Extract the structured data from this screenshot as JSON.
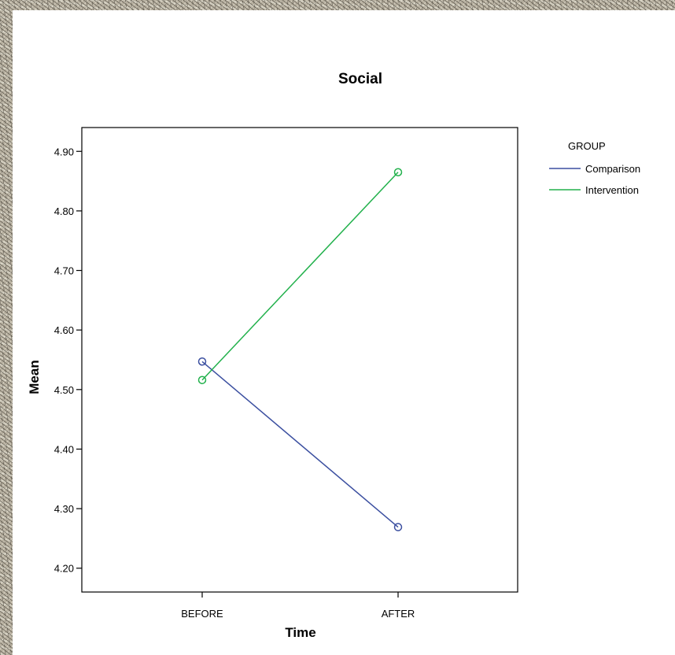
{
  "chart_data": {
    "type": "line",
    "title": "Social",
    "xlabel": "Time",
    "ylabel": "Mean",
    "categories": [
      "BEFORE",
      "AFTER"
    ],
    "ylim": [
      4.16,
      4.94
    ],
    "yticks": [
      "4.20",
      "4.30",
      "4.40",
      "4.50",
      "4.60",
      "4.70",
      "4.80",
      "4.90"
    ],
    "grid": false,
    "legend": {
      "title": "GROUP",
      "placement": "right"
    },
    "series": [
      {
        "name": "Comparison",
        "color": "#3b4fa0",
        "values": [
          4.547,
          4.269
        ]
      },
      {
        "name": "Intervention",
        "color": "#22b14c",
        "values": [
          4.516,
          4.865
        ]
      }
    ],
    "marker": "open-circle"
  }
}
